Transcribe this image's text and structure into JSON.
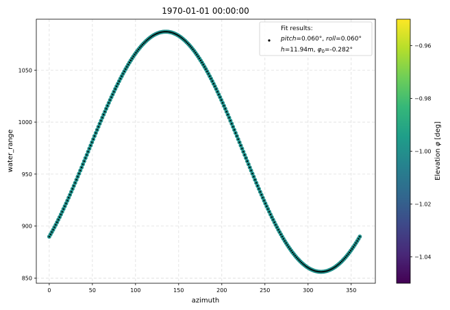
{
  "chart_data": {
    "type": "scatter",
    "title": "1970-01-01 00:00:00",
    "xlabel": "azimuth",
    "ylabel": "water_range",
    "xlim": [
      -15,
      378
    ],
    "ylim": [
      845,
      1099
    ],
    "xticks": [
      "0",
      "50",
      "100",
      "150",
      "200",
      "250",
      "300",
      "350"
    ],
    "yticks": [
      "850",
      "900",
      "950",
      "1000",
      "1050"
    ],
    "grid": true,
    "legend": {
      "placement": "top-right",
      "title": "Fit results:",
      "line1_pitch_label": "pitch",
      "line1_pitch_value": "=0.060°, ",
      "line1_roll_label": "roll",
      "line1_roll_value": "=0.060°",
      "line2_h_label": "h",
      "line2_h_value": "=11.94m, ",
      "line2_phi_label": "φ",
      "line2_phi_sub": "0",
      "line2_phi_value": "=-0.282°"
    },
    "series": [
      {
        "kind": "measured",
        "color": "#21918c",
        "x": [
          0,
          360
        ],
        "model": "y = 971.5 - 115.5*cos((x-315)*pi/180)"
      },
      {
        "kind": "fit",
        "color": "#000000",
        "x": [
          0,
          360
        ],
        "model": "y = 971.5 - 115.5*cos((x-315)*pi/180)"
      }
    ],
    "fit_curve_extends_to": 360,
    "colorbar": {
      "label_prefix": "Elevation ",
      "label_symbol": "φ",
      "label_suffix": " [deg]",
      "range": [
        -1.05,
        -0.95
      ],
      "ticks": [
        "−0.96",
        "−0.98",
        "−1.00",
        "−1.02",
        "−1.04"
      ],
      "tick_values": [
        -0.96,
        -0.98,
        -1.0,
        -1.02,
        -1.04
      ],
      "colormap": [
        "#440154",
        "#482878",
        "#3e4989",
        "#31688e",
        "#26828e",
        "#1f9e89",
        "#35b779",
        "#6ece58",
        "#b5de2b",
        "#fde725"
      ]
    }
  }
}
